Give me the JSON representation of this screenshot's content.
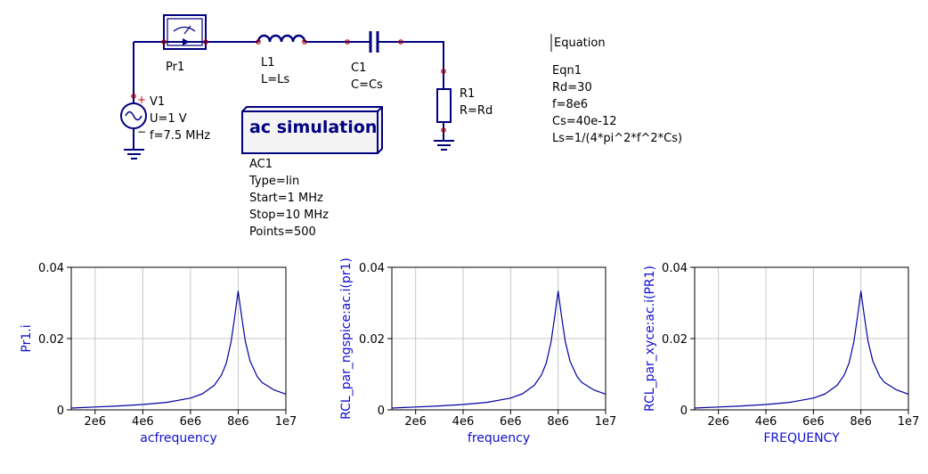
{
  "schematic": {
    "probe": {
      "name": "Pr1"
    },
    "inductor": {
      "name": "L1",
      "value": "L=Ls"
    },
    "capacitor": {
      "name": "C1",
      "value": "C=Cs"
    },
    "resistor": {
      "name": "R1",
      "value": "R=Rd"
    },
    "source": {
      "name": "V1",
      "voltage": "U=1 V",
      "freq": "f=7.5 MHz",
      "plus": "+",
      "minus": "−"
    },
    "simulation": {
      "title": "ac simulation",
      "name": "AC1",
      "lines": [
        "Type=lin",
        "Start=1 MHz",
        "Stop=10 MHz",
        "Points=500"
      ]
    },
    "equation": {
      "header": "Equation",
      "name": "Eqn1",
      "lines": [
        "Rd=30",
        "f=8e6",
        "Cs=40e-12",
        "Ls=1/(4*pi^2*f^2*Cs)"
      ]
    }
  },
  "chart_data": [
    {
      "type": "line",
      "xlabel": "acfrequency",
      "ylabel": "Pr1.i",
      "xlim": [
        1000000,
        10000000
      ],
      "ylim": [
        0,
        0.04
      ],
      "xticks": [
        "2e6",
        "4e6",
        "6e6",
        "8e6",
        "1e7"
      ],
      "yticks": [
        "0",
        "0.02",
        "0.04"
      ],
      "x": [
        1000000,
        2000000,
        3000000,
        4000000,
        5000000,
        6000000,
        6500000,
        7000000,
        7300000,
        7500000,
        7700000,
        7850000,
        8000000,
        8150000,
        8300000,
        8500000,
        8800000,
        9000000,
        9500000,
        10000000
      ],
      "y": [
        0.0005,
        0.0008,
        0.0011,
        0.0015,
        0.0021,
        0.0033,
        0.0045,
        0.0069,
        0.0098,
        0.0131,
        0.019,
        0.0259,
        0.0333,
        0.0259,
        0.0192,
        0.0137,
        0.0093,
        0.0077,
        0.0056,
        0.0044
      ]
    },
    {
      "type": "line",
      "xlabel": "frequency",
      "ylabel": "RCL_par_ngspice:ac.i(pr1)",
      "xlim": [
        1000000,
        10000000
      ],
      "ylim": [
        0,
        0.04
      ],
      "xticks": [
        "2e6",
        "4e6",
        "6e6",
        "8e6",
        "1e7"
      ],
      "yticks": [
        "0",
        "0.02",
        "0.04"
      ],
      "x": [
        1000000,
        2000000,
        3000000,
        4000000,
        5000000,
        6000000,
        6500000,
        7000000,
        7300000,
        7500000,
        7700000,
        7850000,
        8000000,
        8150000,
        8300000,
        8500000,
        8800000,
        9000000,
        9500000,
        10000000
      ],
      "y": [
        0.0005,
        0.0008,
        0.0011,
        0.0015,
        0.0021,
        0.0033,
        0.0045,
        0.0069,
        0.0098,
        0.0131,
        0.019,
        0.0259,
        0.0333,
        0.0259,
        0.0192,
        0.0137,
        0.0093,
        0.0077,
        0.0056,
        0.0044
      ]
    },
    {
      "type": "line",
      "xlabel": "FREQUENCY",
      "ylabel": "RCL_par_xyce:ac.i(PR1)",
      "xlim": [
        1000000,
        10000000
      ],
      "ylim": [
        0,
        0.04
      ],
      "xticks": [
        "2e6",
        "4e6",
        "6e6",
        "8e6",
        "1e7"
      ],
      "yticks": [
        "0",
        "0.02",
        "0.04"
      ],
      "x": [
        1000000,
        2000000,
        3000000,
        4000000,
        5000000,
        6000000,
        6500000,
        7000000,
        7300000,
        7500000,
        7700000,
        7850000,
        8000000,
        8150000,
        8300000,
        8500000,
        8800000,
        9000000,
        9500000,
        10000000
      ],
      "y": [
        0.0005,
        0.0008,
        0.0011,
        0.0015,
        0.0021,
        0.0033,
        0.0045,
        0.0069,
        0.0098,
        0.0131,
        0.019,
        0.0259,
        0.0333,
        0.0259,
        0.0192,
        0.0137,
        0.0093,
        0.0077,
        0.0056,
        0.0044
      ]
    }
  ],
  "colors": {
    "wire": "#000080",
    "component": "#000080",
    "ground": "#000080",
    "pin": "#c00000",
    "curve": "#0000a0",
    "grid": "#c8c8c8",
    "axis_label": "#1010d0",
    "frame": "#000000"
  }
}
